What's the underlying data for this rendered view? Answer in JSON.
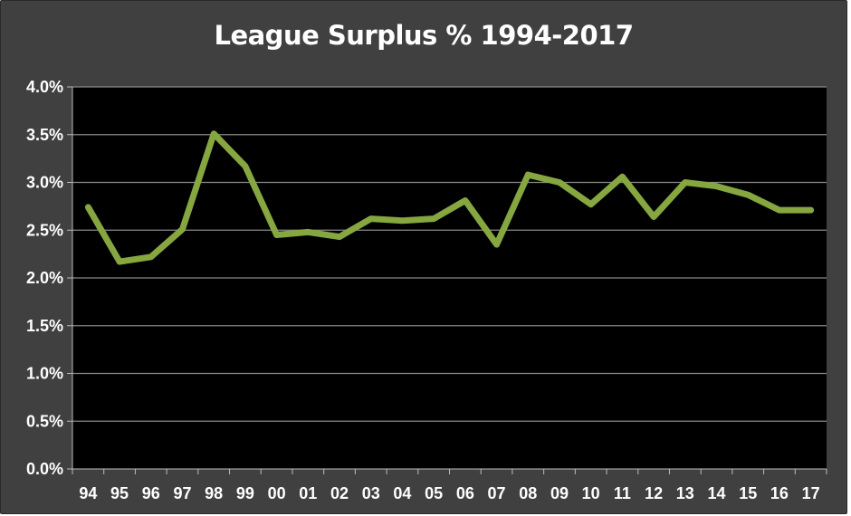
{
  "chart_data": {
    "type": "line",
    "title": "League Surplus % 1994-2017",
    "xlabel": "",
    "ylabel": "",
    "categories": [
      "94",
      "95",
      "96",
      "97",
      "98",
      "99",
      "00",
      "01",
      "02",
      "03",
      "04",
      "05",
      "06",
      "07",
      "08",
      "09",
      "10",
      "11",
      "12",
      "13",
      "14",
      "15",
      "16",
      "17"
    ],
    "series": [
      {
        "values": [
          2.74,
          2.17,
          2.22,
          2.51,
          3.51,
          3.17,
          2.45,
          2.48,
          2.43,
          2.62,
          2.6,
          2.62,
          2.81,
          2.35,
          3.08,
          3.0,
          2.77,
          3.06,
          2.64,
          3.0,
          2.96,
          2.87,
          2.71,
          2.71
        ],
        "color": "#86a640"
      }
    ],
    "ylim": [
      0,
      4.0
    ],
    "yticks": [
      "0.0%",
      "0.5%",
      "1.0%",
      "1.5%",
      "2.0%",
      "2.5%",
      "3.0%",
      "3.5%",
      "4.0%"
    ],
    "ytick_values": [
      0,
      0.5,
      1.0,
      1.5,
      2.0,
      2.5,
      3.0,
      3.5,
      4.0
    ],
    "grid": true,
    "legend": "none",
    "plot_background": "#000000",
    "frame_background": "#404040"
  }
}
